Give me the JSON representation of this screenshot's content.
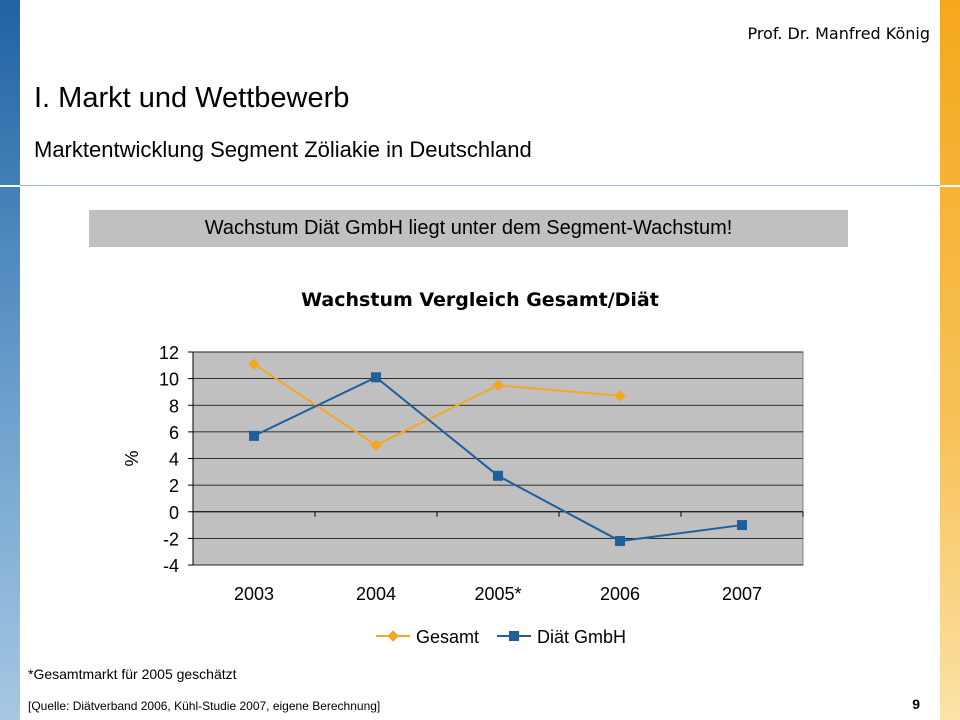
{
  "header": {
    "author": "Prof. Dr. Manfred König",
    "title": "I. Markt und Wettbewerb",
    "subtitle": "Marktentwicklung Segment Zöliakie in Deutschland"
  },
  "banner": {
    "text": "Wachstum Diät GmbH liegt unter dem Segment-Wachstum!"
  },
  "chart_data": {
    "type": "line",
    "title": "Wachstum Vergleich Gesamt/Diät",
    "ylabel": "%",
    "xlabel": "",
    "categories": [
      "2003",
      "2004",
      "2005*",
      "2006",
      "2007"
    ],
    "ylim": [
      -4,
      12
    ],
    "yticks": [
      12,
      10,
      8,
      6,
      4,
      2,
      0,
      -2,
      -4
    ],
    "grid": true,
    "legend": "bottom",
    "series": [
      {
        "name": "Gesamt",
        "values": [
          11.1,
          5.0,
          9.5,
          8.7,
          null
        ],
        "color": "#f5a623",
        "marker": "diamond"
      },
      {
        "name": "Diät GmbH",
        "values": [
          5.7,
          10.1,
          2.7,
          -2.2,
          -1.0
        ],
        "color": "#1f5f9c",
        "marker": "square"
      }
    ],
    "plot_background": "#c0c0c0"
  },
  "footnote": "*Gesamtmarkt für 2005 geschätzt",
  "source": "[Quelle: Diätverband 2006, Kühl-Studie 2007, eigene Berechnung]",
  "page_number": "9"
}
